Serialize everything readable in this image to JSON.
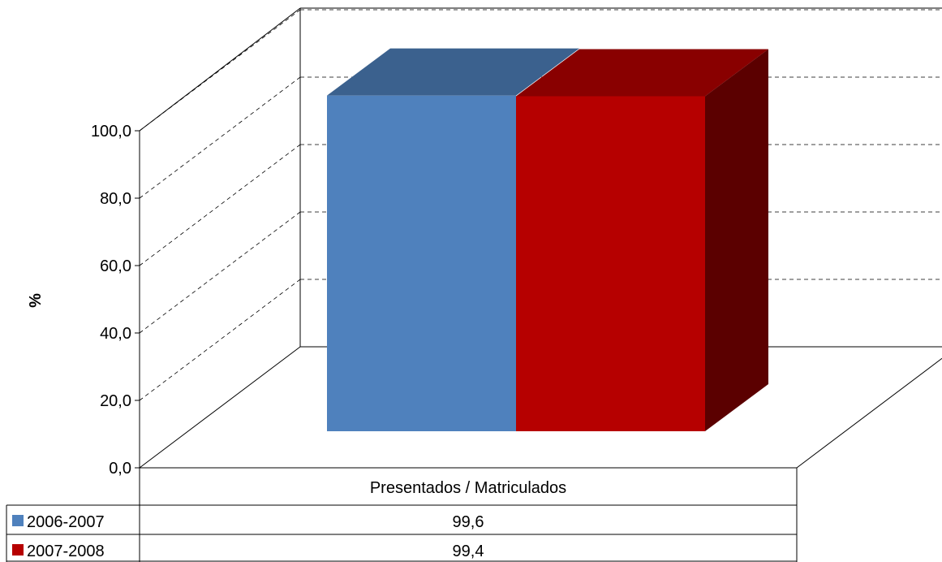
{
  "chart_data": {
    "type": "bar",
    "subtype": "3d-clustered",
    "ylabel": "%",
    "ylim": [
      0,
      100
    ],
    "yticks": [
      "0,0",
      "20,0",
      "40,0",
      "60,0",
      "80,0",
      "100,0"
    ],
    "categories": [
      "Presentados / Matriculados"
    ],
    "series": [
      {
        "name": "2006-2007",
        "values": [
          99.6
        ],
        "display": [
          "99,6"
        ],
        "color": "#4f81bd"
      },
      {
        "name": "2007-2008",
        "values": [
          99.4
        ],
        "display": [
          "99,4"
        ],
        "color": "#b60000"
      }
    ],
    "grid": "dashed horizontal",
    "legend": "data-table-below"
  }
}
